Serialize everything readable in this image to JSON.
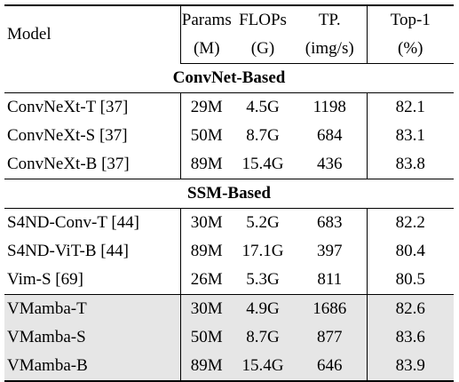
{
  "columns": {
    "model": "Model",
    "params": [
      "Params",
      "(M)"
    ],
    "flops": [
      "FLOPs",
      "(G)"
    ],
    "tp": [
      "TP.",
      "(img/s)"
    ],
    "top1": [
      "Top-1",
      "(%)"
    ]
  },
  "sections": [
    {
      "title": "ConvNet-Based",
      "rows": [
        {
          "model": "ConvNeXt-T [37]",
          "params": "29M",
          "flops": "4.5G",
          "tp": "1198",
          "top1": "82.1"
        },
        {
          "model": "ConvNeXt-S [37]",
          "params": "50M",
          "flops": "8.7G",
          "tp": "684",
          "top1": "83.1"
        },
        {
          "model": "ConvNeXt-B [37]",
          "params": "89M",
          "flops": "15.4G",
          "tp": "436",
          "top1": "83.8"
        }
      ]
    },
    {
      "title": "SSM-Based",
      "rows": [
        {
          "model": "S4ND-Conv-T [44]",
          "params": "30M",
          "flops": "5.2G",
          "tp": "683",
          "top1": "82.2"
        },
        {
          "model": "S4ND-ViT-B [44]",
          "params": "89M",
          "flops": "17.1G",
          "tp": "397",
          "top1": "80.4"
        },
        {
          "model": "Vim-S [69]",
          "params": "26M",
          "flops": "5.3G",
          "tp": "811",
          "top1": "80.5"
        }
      ]
    }
  ],
  "ours": [
    {
      "model": "VMamba-T",
      "params": "30M",
      "flops": "4.9G",
      "tp": "1686",
      "top1": "82.6"
    },
    {
      "model": "VMamba-S",
      "params": "50M",
      "flops": "8.7G",
      "tp": "877",
      "top1": "83.6"
    },
    {
      "model": "VMamba-B",
      "params": "89M",
      "flops": "15.4G",
      "tp": "646",
      "top1": "83.9"
    }
  ]
}
